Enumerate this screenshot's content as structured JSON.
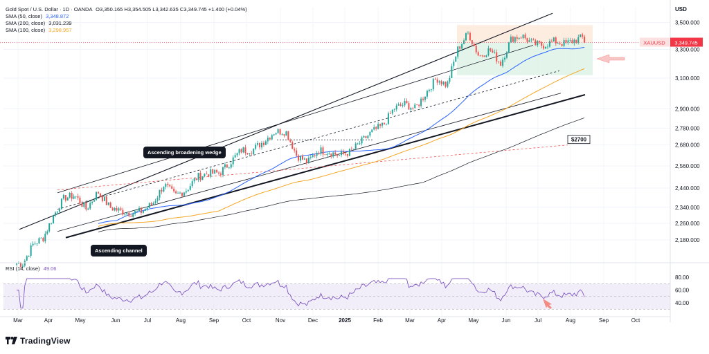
{
  "header": {
    "title": "Gold Spot / U.S. Dollar · 1D · OANDA",
    "ohlc": "O3,350.165  H3,354.505  L3,342.635  C3,349.745  +1.400 (+0.04%)",
    "sma50_label": "SMA (50, close)",
    "sma50_value": "3,348.872",
    "sma200_label": "SMA (200, close)",
    "sma200_value": "3,031.239",
    "sma100_label": "SMA (100, close)",
    "sma100_value": "3,298.957"
  },
  "currency": "USD",
  "price_tag": {
    "symbol": "XAUUSD",
    "value": "3,349.745"
  },
  "annotations": {
    "wedge": "Ascending broadening wedge",
    "channel": "Ascending channel",
    "level": "$2700"
  },
  "rsi": {
    "label": "RSI (14, close)",
    "value": "49.06",
    "ticks": [
      "80.00",
      "60.00",
      "40.00"
    ]
  },
  "logo": "TradingView",
  "colors": {
    "up": "#26a69a",
    "down": "#ef5350",
    "sma50": "#2962ff",
    "sma100": "#f5a623",
    "sma200": "#131722",
    "rsi": "#7e57c2",
    "price_tag": "#f23645"
  },
  "chart_data": [
    {
      "type": "candlestick",
      "symbol": "XAUUSD",
      "timeframe": "1D",
      "x_ticks": [
        "Mar",
        "Apr",
        "May",
        "Jun",
        "Jul",
        "Aug",
        "Sep",
        "Oct",
        "Nov",
        "Dec",
        "2025",
        "Feb",
        "Mar",
        "Apr",
        "May",
        "Jun",
        "Jul",
        "Aug",
        "Sep",
        "Oct"
      ],
      "y_ticks": [
        3500,
        3300,
        3100,
        2900,
        2780,
        2680,
        2560,
        2440,
        2340,
        2260,
        2180
      ],
      "y_tick_labels": [
        "3,500.000",
        "3,300.000",
        "3,100.000",
        "2,900.000",
        "2,780.000",
        "2,680.000",
        "2,560.000",
        "2,440.000",
        "2,340.000",
        "2,260.000",
        "2,180.000"
      ],
      "ylim": [
        2080,
        3620
      ],
      "scale": "log",
      "close_path": [
        [
          "Mar",
          2070
        ],
        [
          "Mar",
          2160
        ],
        [
          "Mar",
          2190
        ],
        [
          "Apr",
          2300
        ],
        [
          "Apr",
          2390
        ],
        [
          "Apr",
          2400
        ],
        [
          "May",
          2330
        ],
        [
          "May",
          2420
        ],
        [
          "May",
          2340
        ],
        [
          "Jun",
          2320
        ],
        [
          "Jun",
          2310
        ],
        [
          "Jun",
          2320
        ],
        [
          "Jul",
          2360
        ],
        [
          "Jul",
          2460
        ],
        [
          "Jul",
          2400
        ],
        [
          "Aug",
          2430
        ],
        [
          "Aug",
          2500
        ],
        [
          "Aug",
          2520
        ],
        [
          "Sep",
          2520
        ],
        [
          "Sep",
          2580
        ],
        [
          "Sep",
          2650
        ],
        [
          "Oct",
          2650
        ],
        [
          "Oct",
          2700
        ],
        [
          "Oct",
          2760
        ],
        [
          "Nov",
          2760
        ],
        [
          "Nov",
          2620
        ],
        [
          "Nov",
          2580
        ],
        [
          "Dec",
          2650
        ],
        [
          "Dec",
          2640
        ],
        [
          "Dec",
          2620
        ],
        [
          "2025",
          2640
        ],
        [
          "2025",
          2700
        ],
        [
          "2025",
          2760
        ],
        [
          "Feb",
          2800
        ],
        [
          "Feb",
          2900
        ],
        [
          "Feb",
          2930
        ],
        [
          "Mar",
          2900
        ],
        [
          "Mar",
          3000
        ],
        [
          "Mar",
          3100
        ],
        [
          "Apr",
          3050
        ],
        [
          "Apr",
          3300
        ],
        [
          "Apr",
          3420
        ],
        [
          "May",
          3250
        ],
        [
          "May",
          3300
        ],
        [
          "May",
          3200
        ],
        [
          "Jun",
          3380
        ],
        [
          "Jun",
          3400
        ],
        [
          "Jun",
          3340
        ],
        [
          "Jul",
          3330
        ],
        [
          "Jul",
          3360
        ],
        [
          "Jul",
          3340
        ],
        [
          "Aug",
          3370
        ],
        [
          "Aug",
          3400
        ],
        [
          "Aug",
          3350
        ]
      ],
      "last_price": 3349.745,
      "series": [
        {
          "name": "SMA (50, close)",
          "last": 3348.872
        },
        {
          "name": "SMA (200, close)",
          "last": 3031.239
        },
        {
          "name": "SMA (100, close)",
          "last": 3298.957
        }
      ],
      "annotations": [
        "Ascending broadening wedge",
        "Ascending channel",
        "$2700"
      ]
    },
    {
      "type": "line",
      "title": "RSI (14, close)",
      "last": 49.06,
      "y_ticks": [
        80,
        60,
        40
      ],
      "band": [
        30,
        70
      ]
    }
  ]
}
